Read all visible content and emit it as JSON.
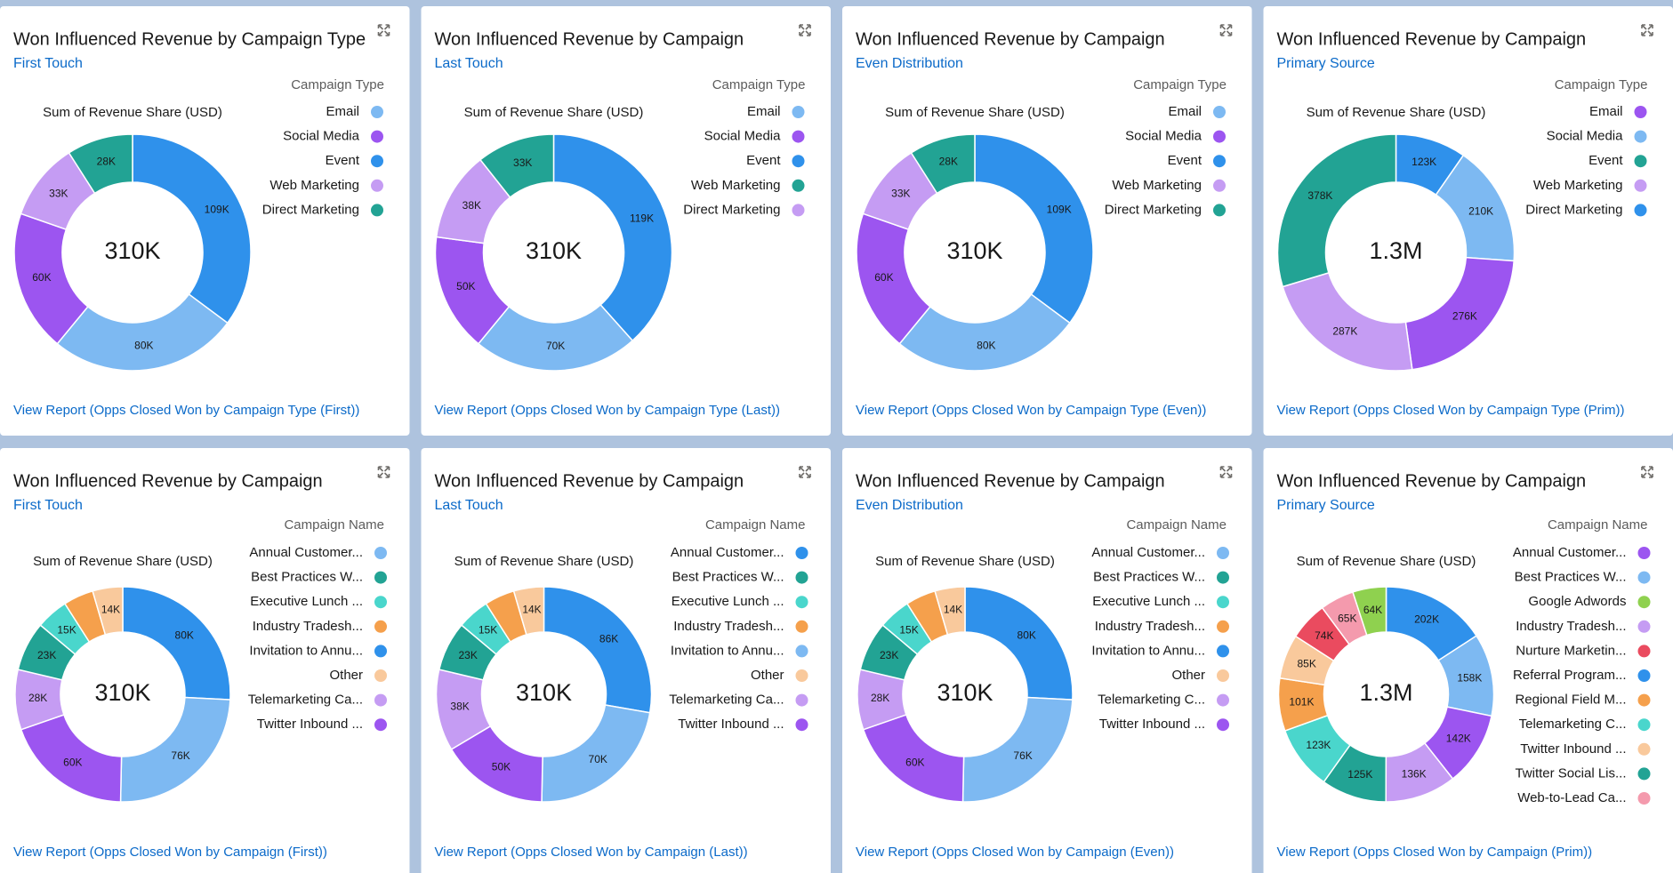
{
  "chart_data": [
    {
      "type": "donut",
      "title": "Won Influenced Revenue by Campaign Type",
      "subtitle": "First Touch",
      "legend_title": "Campaign Type",
      "measure_label": "Sum of Revenue Share (USD)",
      "total": {
        "value": 310000,
        "label": "310K"
      },
      "legend": [
        {
          "name": "Email",
          "color": "#7db9f2"
        },
        {
          "name": "Social Media",
          "color": "#9c55f0"
        },
        {
          "name": "Event",
          "color": "#2f91eb"
        },
        {
          "name": "Web Marketing",
          "color": "#c59cf3"
        },
        {
          "name": "Direct Marketing",
          "color": "#22a394"
        }
      ],
      "values": [
        109000,
        80000,
        60000,
        33000,
        28000
      ],
      "value_labels": [
        "109K",
        "80K",
        "60K",
        "33K",
        "28K"
      ],
      "colors": [
        "#2f91eb",
        "#7db9f2",
        "#9c55f0",
        "#c59cf3",
        "#22a394"
      ],
      "link": "View Report (Opps Closed Won by Campaign Type (First))"
    },
    {
      "type": "donut",
      "title": "Won Influenced Revenue by Campaign",
      "subtitle": "Last Touch",
      "legend_title": "Campaign Type",
      "measure_label": "Sum of Revenue Share (USD)",
      "total": {
        "value": 310000,
        "label": "310K"
      },
      "legend": [
        {
          "name": "Email",
          "color": "#7db9f2"
        },
        {
          "name": "Social Media",
          "color": "#9c55f0"
        },
        {
          "name": "Event",
          "color": "#2f91eb"
        },
        {
          "name": "Web Marketing",
          "color": "#22a394"
        },
        {
          "name": "Direct Marketing",
          "color": "#c59cf3"
        }
      ],
      "values": [
        119000,
        70000,
        50000,
        38000,
        33000
      ],
      "value_labels": [
        "119K",
        "70K",
        "50K",
        "38K",
        "33K"
      ],
      "colors": [
        "#2f91eb",
        "#7db9f2",
        "#9c55f0",
        "#c59cf3",
        "#22a394"
      ],
      "link": "View Report (Opps Closed Won by Campaign Type (Last))"
    },
    {
      "type": "donut",
      "title": "Won Influenced Revenue by Campaign",
      "subtitle": "Even Distribution",
      "legend_title": "Campaign Type",
      "measure_label": "Sum of Revenue Share (USD)",
      "total": {
        "value": 310000,
        "label": "310K"
      },
      "legend": [
        {
          "name": "Email",
          "color": "#7db9f2"
        },
        {
          "name": "Social Media",
          "color": "#9c55f0"
        },
        {
          "name": "Event",
          "color": "#2f91eb"
        },
        {
          "name": "Web Marketing",
          "color": "#c59cf3"
        },
        {
          "name": "Direct Marketing",
          "color": "#22a394"
        }
      ],
      "values": [
        109000,
        80000,
        60000,
        33000,
        28000
      ],
      "value_labels": [
        "109K",
        "80K",
        "60K",
        "33K",
        "28K"
      ],
      "colors": [
        "#2f91eb",
        "#7db9f2",
        "#9c55f0",
        "#c59cf3",
        "#22a394"
      ],
      "link": "View Report (Opps Closed Won by Campaign Type (Even))"
    },
    {
      "type": "donut",
      "title": "Won Influenced Revenue by Campaign",
      "subtitle": "Primary Source",
      "legend_title": "Campaign Type",
      "measure_label": "Sum of Revenue Share (USD)",
      "total": {
        "value": 1300000,
        "label": "1.3M"
      },
      "legend": [
        {
          "name": "Email",
          "color": "#9c55f0"
        },
        {
          "name": "Social Media",
          "color": "#7db9f2"
        },
        {
          "name": "Event",
          "color": "#22a394"
        },
        {
          "name": "Web Marketing",
          "color": "#c59cf3"
        },
        {
          "name": "Direct Marketing",
          "color": "#2f91eb"
        }
      ],
      "values": [
        123000,
        210000,
        276000,
        287000,
        378000
      ],
      "value_labels": [
        "123K",
        "210K",
        "276K",
        "287K",
        "378K"
      ],
      "colors": [
        "#2f91eb",
        "#7db9f2",
        "#9c55f0",
        "#c59cf3",
        "#22a394"
      ],
      "link": "View Report (Opps Closed Won by Campaign Type (Prim))"
    },
    {
      "type": "donut",
      "title": "Won Influenced Revenue by Campaign",
      "subtitle": "First Touch",
      "legend_title": "Campaign Name",
      "measure_label": "Sum of Revenue Share (USD)",
      "total": {
        "value": 310000,
        "label": "310K"
      },
      "legend": [
        {
          "name": "Annual Customer...",
          "color": "#7db9f2"
        },
        {
          "name": "Best Practices W...",
          "color": "#22a394"
        },
        {
          "name": "Executive Lunch ...",
          "color": "#4ad6cc"
        },
        {
          "name": "Industry Tradesh...",
          "color": "#f5a04c"
        },
        {
          "name": "Invitation to Annu...",
          "color": "#2f91eb"
        },
        {
          "name": "Other",
          "color": "#f9c99c"
        },
        {
          "name": "Telemarketing Ca...",
          "color": "#c59cf3"
        },
        {
          "name": "Twitter Inbound ...",
          "color": "#9c55f0"
        }
      ],
      "values": [
        80000,
        76000,
        60000,
        28000,
        23000,
        15000,
        14000,
        14000
      ],
      "value_labels": [
        "80K",
        "76K",
        "60K",
        "28K",
        "23K",
        "15K",
        null,
        "14K"
      ],
      "colors": [
        "#2f91eb",
        "#7db9f2",
        "#9c55f0",
        "#c59cf3",
        "#22a394",
        "#4ad6cc",
        "#f5a04c",
        "#f9c99c"
      ],
      "link": "View Report (Opps Closed Won by Campaign (First))"
    },
    {
      "type": "donut",
      "title": "Won Influenced Revenue by Campaign",
      "subtitle": "Last Touch",
      "legend_title": "Campaign Name",
      "measure_label": "Sum of Revenue Share (USD)",
      "total": {
        "value": 310000,
        "label": "310K"
      },
      "legend": [
        {
          "name": "Annual Customer...",
          "color": "#2f91eb"
        },
        {
          "name": "Best Practices W...",
          "color": "#22a394"
        },
        {
          "name": "Executive Lunch ...",
          "color": "#4ad6cc"
        },
        {
          "name": "Industry Tradesh...",
          "color": "#f5a04c"
        },
        {
          "name": "Invitation to Annu...",
          "color": "#7db9f2"
        },
        {
          "name": "Other",
          "color": "#f9c99c"
        },
        {
          "name": "Telemarketing Ca...",
          "color": "#c59cf3"
        },
        {
          "name": "Twitter Inbound ...",
          "color": "#9c55f0"
        }
      ],
      "values": [
        86000,
        70000,
        50000,
        38000,
        23000,
        15000,
        14000,
        14000
      ],
      "value_labels": [
        "86K",
        "70K",
        "50K",
        "38K",
        "23K",
        "15K",
        null,
        "14K"
      ],
      "colors": [
        "#2f91eb",
        "#7db9f2",
        "#9c55f0",
        "#c59cf3",
        "#22a394",
        "#4ad6cc",
        "#f5a04c",
        "#f9c99c"
      ],
      "link": "View Report (Opps Closed Won by Campaign (Last))"
    },
    {
      "type": "donut",
      "title": "Won Influenced Revenue by Campaign",
      "subtitle": "Even Distribution",
      "legend_title": "Campaign Name",
      "measure_label": "Sum of Revenue Share (USD)",
      "total": {
        "value": 310000,
        "label": "310K"
      },
      "legend": [
        {
          "name": "Annual Customer...",
          "color": "#7db9f2"
        },
        {
          "name": "Best Practices W...",
          "color": "#22a394"
        },
        {
          "name": "Executive Lunch ...",
          "color": "#4ad6cc"
        },
        {
          "name": "Industry Tradesh...",
          "color": "#f5a04c"
        },
        {
          "name": "Invitation to Annu...",
          "color": "#2f91eb"
        },
        {
          "name": "Other",
          "color": "#f9c99c"
        },
        {
          "name": "Telemarketing C...",
          "color": "#c59cf3"
        },
        {
          "name": "Twitter Inbound ...",
          "color": "#9c55f0"
        }
      ],
      "values": [
        80000,
        76000,
        60000,
        28000,
        23000,
        15000,
        14000,
        14000
      ],
      "value_labels": [
        "80K",
        "76K",
        "60K",
        "28K",
        "23K",
        "15K",
        null,
        "14K"
      ],
      "colors": [
        "#2f91eb",
        "#7db9f2",
        "#9c55f0",
        "#c59cf3",
        "#22a394",
        "#4ad6cc",
        "#f5a04c",
        "#f9c99c"
      ],
      "link": "View Report (Opps Closed Won by Campaign (Even))"
    },
    {
      "type": "donut",
      "title": "Won Influenced Revenue by Campaign",
      "subtitle": "Primary Source",
      "legend_title": "Campaign Name",
      "measure_label": "Sum of Revenue Share (USD)",
      "total": {
        "value": 1300000,
        "label": "1.3M"
      },
      "legend": [
        {
          "name": "Annual Customer...",
          "color": "#9c55f0"
        },
        {
          "name": "Best Practices W...",
          "color": "#7db9f2"
        },
        {
          "name": "Google Adwords",
          "color": "#8fd14f"
        },
        {
          "name": "Industry Tradesh...",
          "color": "#c59cf3"
        },
        {
          "name": "Nurture Marketin...",
          "color": "#ea4b5f"
        },
        {
          "name": "Referral Program...",
          "color": "#2f91eb"
        },
        {
          "name": "Regional Field M...",
          "color": "#f5a04c"
        },
        {
          "name": "Telemarketing C...",
          "color": "#4ad6cc"
        },
        {
          "name": "Twitter Inbound ...",
          "color": "#f9c99c"
        },
        {
          "name": "Twitter Social Lis...",
          "color": "#22a394"
        },
        {
          "name": "Web-to-Lead Ca...",
          "color": "#f49aad"
        }
      ],
      "values": [
        202000,
        158000,
        142000,
        136000,
        125000,
        123000,
        101000,
        85000,
        74000,
        65000,
        64000
      ],
      "value_labels": [
        "202K",
        "158K",
        "142K",
        "136K",
        "125K",
        "123K",
        "101K",
        "85K",
        "74K",
        "65K",
        "64K"
      ],
      "colors": [
        "#2f91eb",
        "#7db9f2",
        "#9c55f0",
        "#c59cf3",
        "#22a394",
        "#4ad6cc",
        "#f5a04c",
        "#f9c99c",
        "#ea4b5f",
        "#f49aad",
        "#8fd14f"
      ],
      "link": "View Report (Opps Closed Won by Campaign (Prim))"
    }
  ]
}
